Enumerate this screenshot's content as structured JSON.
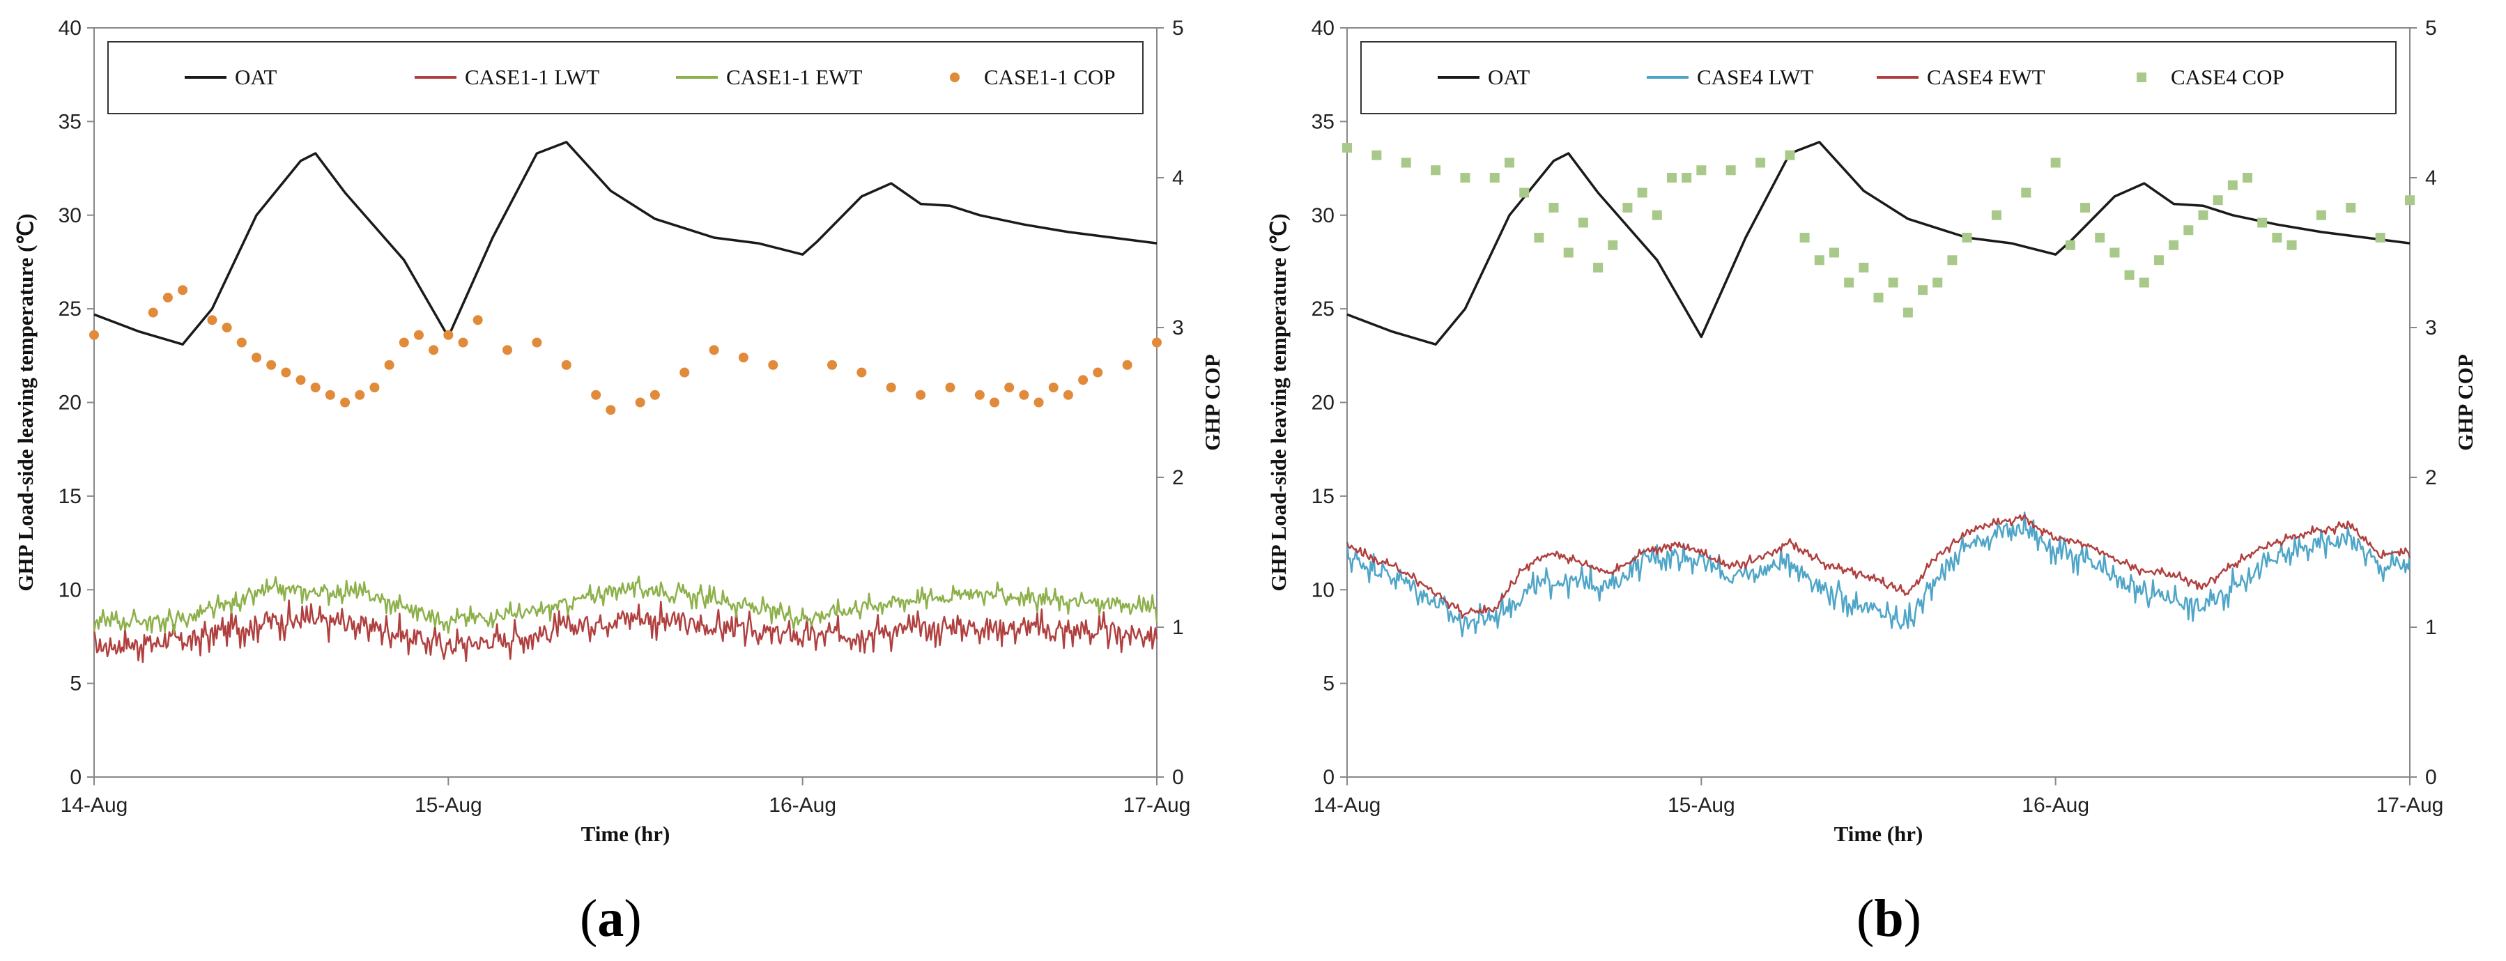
{
  "chart_data": [
    {
      "type": "line",
      "panel_label": "a",
      "xlabel": "Time (hr)",
      "ylabel": "GHP Load-side leaving temperature (℃)",
      "y2label": "GHP COP",
      "x_ticks": [
        "14-Aug",
        "15-Aug",
        "16-Aug",
        "17-Aug"
      ],
      "x_range": [
        0,
        72
      ],
      "ylim": [
        0,
        40
      ],
      "y_ticks": [
        0,
        5,
        10,
        15,
        20,
        25,
        30,
        35,
        40
      ],
      "y2lim": [
        0,
        5
      ],
      "y2_ticks": [
        0,
        1,
        2,
        3,
        4,
        5
      ],
      "grid": false,
      "legend_position": "top",
      "series": [
        {
          "name": "OAT",
          "kind": "line",
          "axis": "left",
          "color": "#1a1a1a",
          "x": [
            0,
            3,
            6,
            8,
            11,
            14,
            15,
            17,
            21,
            24,
            27,
            30,
            32,
            35,
            38,
            42,
            45,
            48,
            49,
            52,
            54,
            56,
            58,
            60,
            63,
            66,
            69,
            72
          ],
          "y": [
            24.7,
            23.8,
            23.1,
            25.0,
            30.0,
            32.9,
            33.3,
            31.2,
            27.6,
            23.5,
            28.8,
            33.3,
            33.9,
            31.3,
            29.8,
            28.8,
            28.5,
            27.9,
            28.6,
            31.0,
            31.7,
            30.6,
            30.5,
            30.0,
            29.5,
            29.1,
            28.8,
            28.5
          ]
        },
        {
          "name": "CASE1-1 LWT",
          "kind": "line",
          "axis": "left",
          "color": "#b0403f",
          "x": [
            0,
            6,
            12,
            18,
            24,
            30,
            36,
            42,
            48,
            54,
            60,
            66,
            72
          ],
          "y": [
            7.0,
            7.3,
            8.4,
            8.2,
            7.0,
            7.6,
            8.6,
            8.0,
            7.5,
            7.8,
            8.1,
            7.8,
            7.6
          ]
        },
        {
          "name": "CASE1-1 EWT",
          "kind": "line",
          "axis": "left",
          "color": "#8cb04a",
          "x": [
            0,
            6,
            12,
            18,
            24,
            30,
            36,
            42,
            48,
            54,
            60,
            66,
            72
          ],
          "y": [
            8.3,
            8.4,
            10.0,
            9.8,
            8.4,
            8.8,
            10.2,
            9.5,
            8.5,
            9.4,
            9.8,
            9.4,
            9.0
          ]
        },
        {
          "name": "CASE1-1 COP",
          "kind": "scatter",
          "axis": "right",
          "color": "#e08a3a",
          "x": [
            0,
            4,
            5,
            6,
            8,
            9,
            10,
            11,
            12,
            13,
            14,
            15,
            16,
            17,
            18,
            19,
            20,
            21,
            22,
            23,
            24,
            25,
            26,
            28,
            30,
            32,
            34,
            35,
            37,
            38,
            40,
            42,
            44,
            46,
            50,
            52,
            54,
            56,
            58,
            60,
            61,
            62,
            63,
            64,
            65,
            66,
            67,
            68,
            70,
            72
          ],
          "y": [
            2.95,
            3.1,
            3.2,
            3.25,
            3.05,
            3.0,
            2.9,
            2.8,
            2.75,
            2.7,
            2.65,
            2.6,
            2.55,
            2.5,
            2.55,
            2.6,
            2.75,
            2.9,
            2.95,
            2.85,
            2.95,
            2.9,
            3.05,
            2.85,
            2.9,
            2.75,
            2.55,
            2.45,
            2.5,
            2.55,
            2.7,
            2.85,
            2.8,
            2.75,
            2.75,
            2.7,
            2.6,
            2.55,
            2.6,
            2.55,
            2.5,
            2.6,
            2.55,
            2.5,
            2.6,
            2.55,
            2.65,
            2.7,
            2.75,
            2.9
          ]
        }
      ]
    },
    {
      "type": "line",
      "panel_label": "b",
      "xlabel": "Time (hr)",
      "ylabel": "GHP Load-side leaving temperature (℃)",
      "y2label": "GHP COP",
      "x_ticks": [
        "14-Aug",
        "15-Aug",
        "16-Aug",
        "17-Aug"
      ],
      "x_range": [
        0,
        72
      ],
      "ylim": [
        0,
        40
      ],
      "y_ticks": [
        0,
        5,
        10,
        15,
        20,
        25,
        30,
        35,
        40
      ],
      "y2lim": [
        0,
        5
      ],
      "y2_ticks": [
        0,
        1,
        2,
        3,
        4,
        5
      ],
      "grid": false,
      "legend_position": "top",
      "series": [
        {
          "name": "OAT",
          "kind": "line",
          "axis": "left",
          "color": "#1a1a1a",
          "x": [
            0,
            3,
            6,
            8,
            11,
            14,
            15,
            17,
            21,
            24,
            27,
            30,
            32,
            35,
            38,
            42,
            45,
            48,
            49,
            52,
            54,
            56,
            58,
            60,
            63,
            66,
            69,
            72
          ],
          "y": [
            24.7,
            23.8,
            23.1,
            25.0,
            30.0,
            32.9,
            33.3,
            31.2,
            27.6,
            23.5,
            28.8,
            33.3,
            33.9,
            31.3,
            29.8,
            28.8,
            28.5,
            27.9,
            28.6,
            31.0,
            31.7,
            30.6,
            30.5,
            30.0,
            29.5,
            29.1,
            28.8,
            28.5
          ]
        },
        {
          "name": "CASE4 LWT",
          "kind": "line",
          "axis": "left",
          "color": "#4ea5c8",
          "x": [
            0,
            4,
            8,
            10,
            12,
            14,
            16,
            18,
            20,
            22,
            24,
            26,
            28,
            30,
            32,
            34,
            36,
            38,
            40,
            42,
            44,
            46,
            48,
            50,
            52,
            54,
            56,
            58,
            60,
            62,
            64,
            66,
            68,
            70,
            72
          ],
          "y": [
            11.8,
            10.4,
            8.2,
            8.6,
            9.8,
            10.5,
            10.4,
            10.2,
            11.5,
            11.9,
            11.6,
            10.6,
            11.0,
            11.6,
            10.2,
            9.4,
            8.8,
            8.2,
            10.8,
            12.4,
            13.0,
            13.3,
            12.1,
            11.5,
            10.6,
            9.8,
            9.6,
            9.0,
            10.2,
            11.3,
            12.0,
            12.5,
            12.8,
            11.2,
            11.4
          ]
        },
        {
          "name": "CASE4 EWT",
          "kind": "line",
          "axis": "left",
          "color": "#b0403f",
          "x": [
            0,
            4,
            8,
            10,
            12,
            14,
            16,
            18,
            20,
            22,
            24,
            26,
            28,
            30,
            32,
            34,
            36,
            38,
            40,
            42,
            44,
            46,
            48,
            50,
            52,
            54,
            56,
            58,
            60,
            62,
            64,
            66,
            68,
            70,
            72
          ],
          "y": [
            12.3,
            10.9,
            8.7,
            9.0,
            11.2,
            12.0,
            11.4,
            10.9,
            12.0,
            12.4,
            12.0,
            11.2,
            11.7,
            12.6,
            11.5,
            11.0,
            10.5,
            9.8,
            11.8,
            13.0,
            13.6,
            13.8,
            12.7,
            12.5,
            11.6,
            11.0,
            10.8,
            10.2,
            11.3,
            12.2,
            12.8,
            13.2,
            13.4,
            11.8,
            12.0
          ]
        },
        {
          "name": "CASE4 COP",
          "kind": "scatter",
          "axis": "right",
          "color": "#a8c98a",
          "x": [
            0,
            2,
            4,
            6,
            8,
            10,
            11,
            12,
            13,
            14,
            15,
            16,
            17,
            18,
            19,
            20,
            21,
            22,
            23,
            24,
            26,
            28,
            30,
            31,
            32,
            33,
            34,
            35,
            36,
            37,
            38,
            39,
            40,
            41,
            42,
            44,
            46,
            48,
            49,
            50,
            51,
            52,
            53,
            54,
            55,
            56,
            57,
            58,
            59,
            60,
            61,
            62,
            63,
            64,
            66,
            68,
            70,
            72
          ],
          "y": [
            4.2,
            4.15,
            4.1,
            4.05,
            4.0,
            4.0,
            4.1,
            3.9,
            3.6,
            3.8,
            3.5,
            3.7,
            3.4,
            3.55,
            3.8,
            3.9,
            3.75,
            4.0,
            4.0,
            4.05,
            4.05,
            4.1,
            4.15,
            3.6,
            3.45,
            3.5,
            3.3,
            3.4,
            3.2,
            3.3,
            3.1,
            3.25,
            3.3,
            3.45,
            3.6,
            3.75,
            3.9,
            4.1,
            3.55,
            3.8,
            3.6,
            3.5,
            3.35,
            3.3,
            3.45,
            3.55,
            3.65,
            3.75,
            3.85,
            3.95,
            4.0,
            3.7,
            3.6,
            3.55,
            3.75,
            3.8,
            3.6,
            3.85
          ]
        }
      ]
    }
  ]
}
